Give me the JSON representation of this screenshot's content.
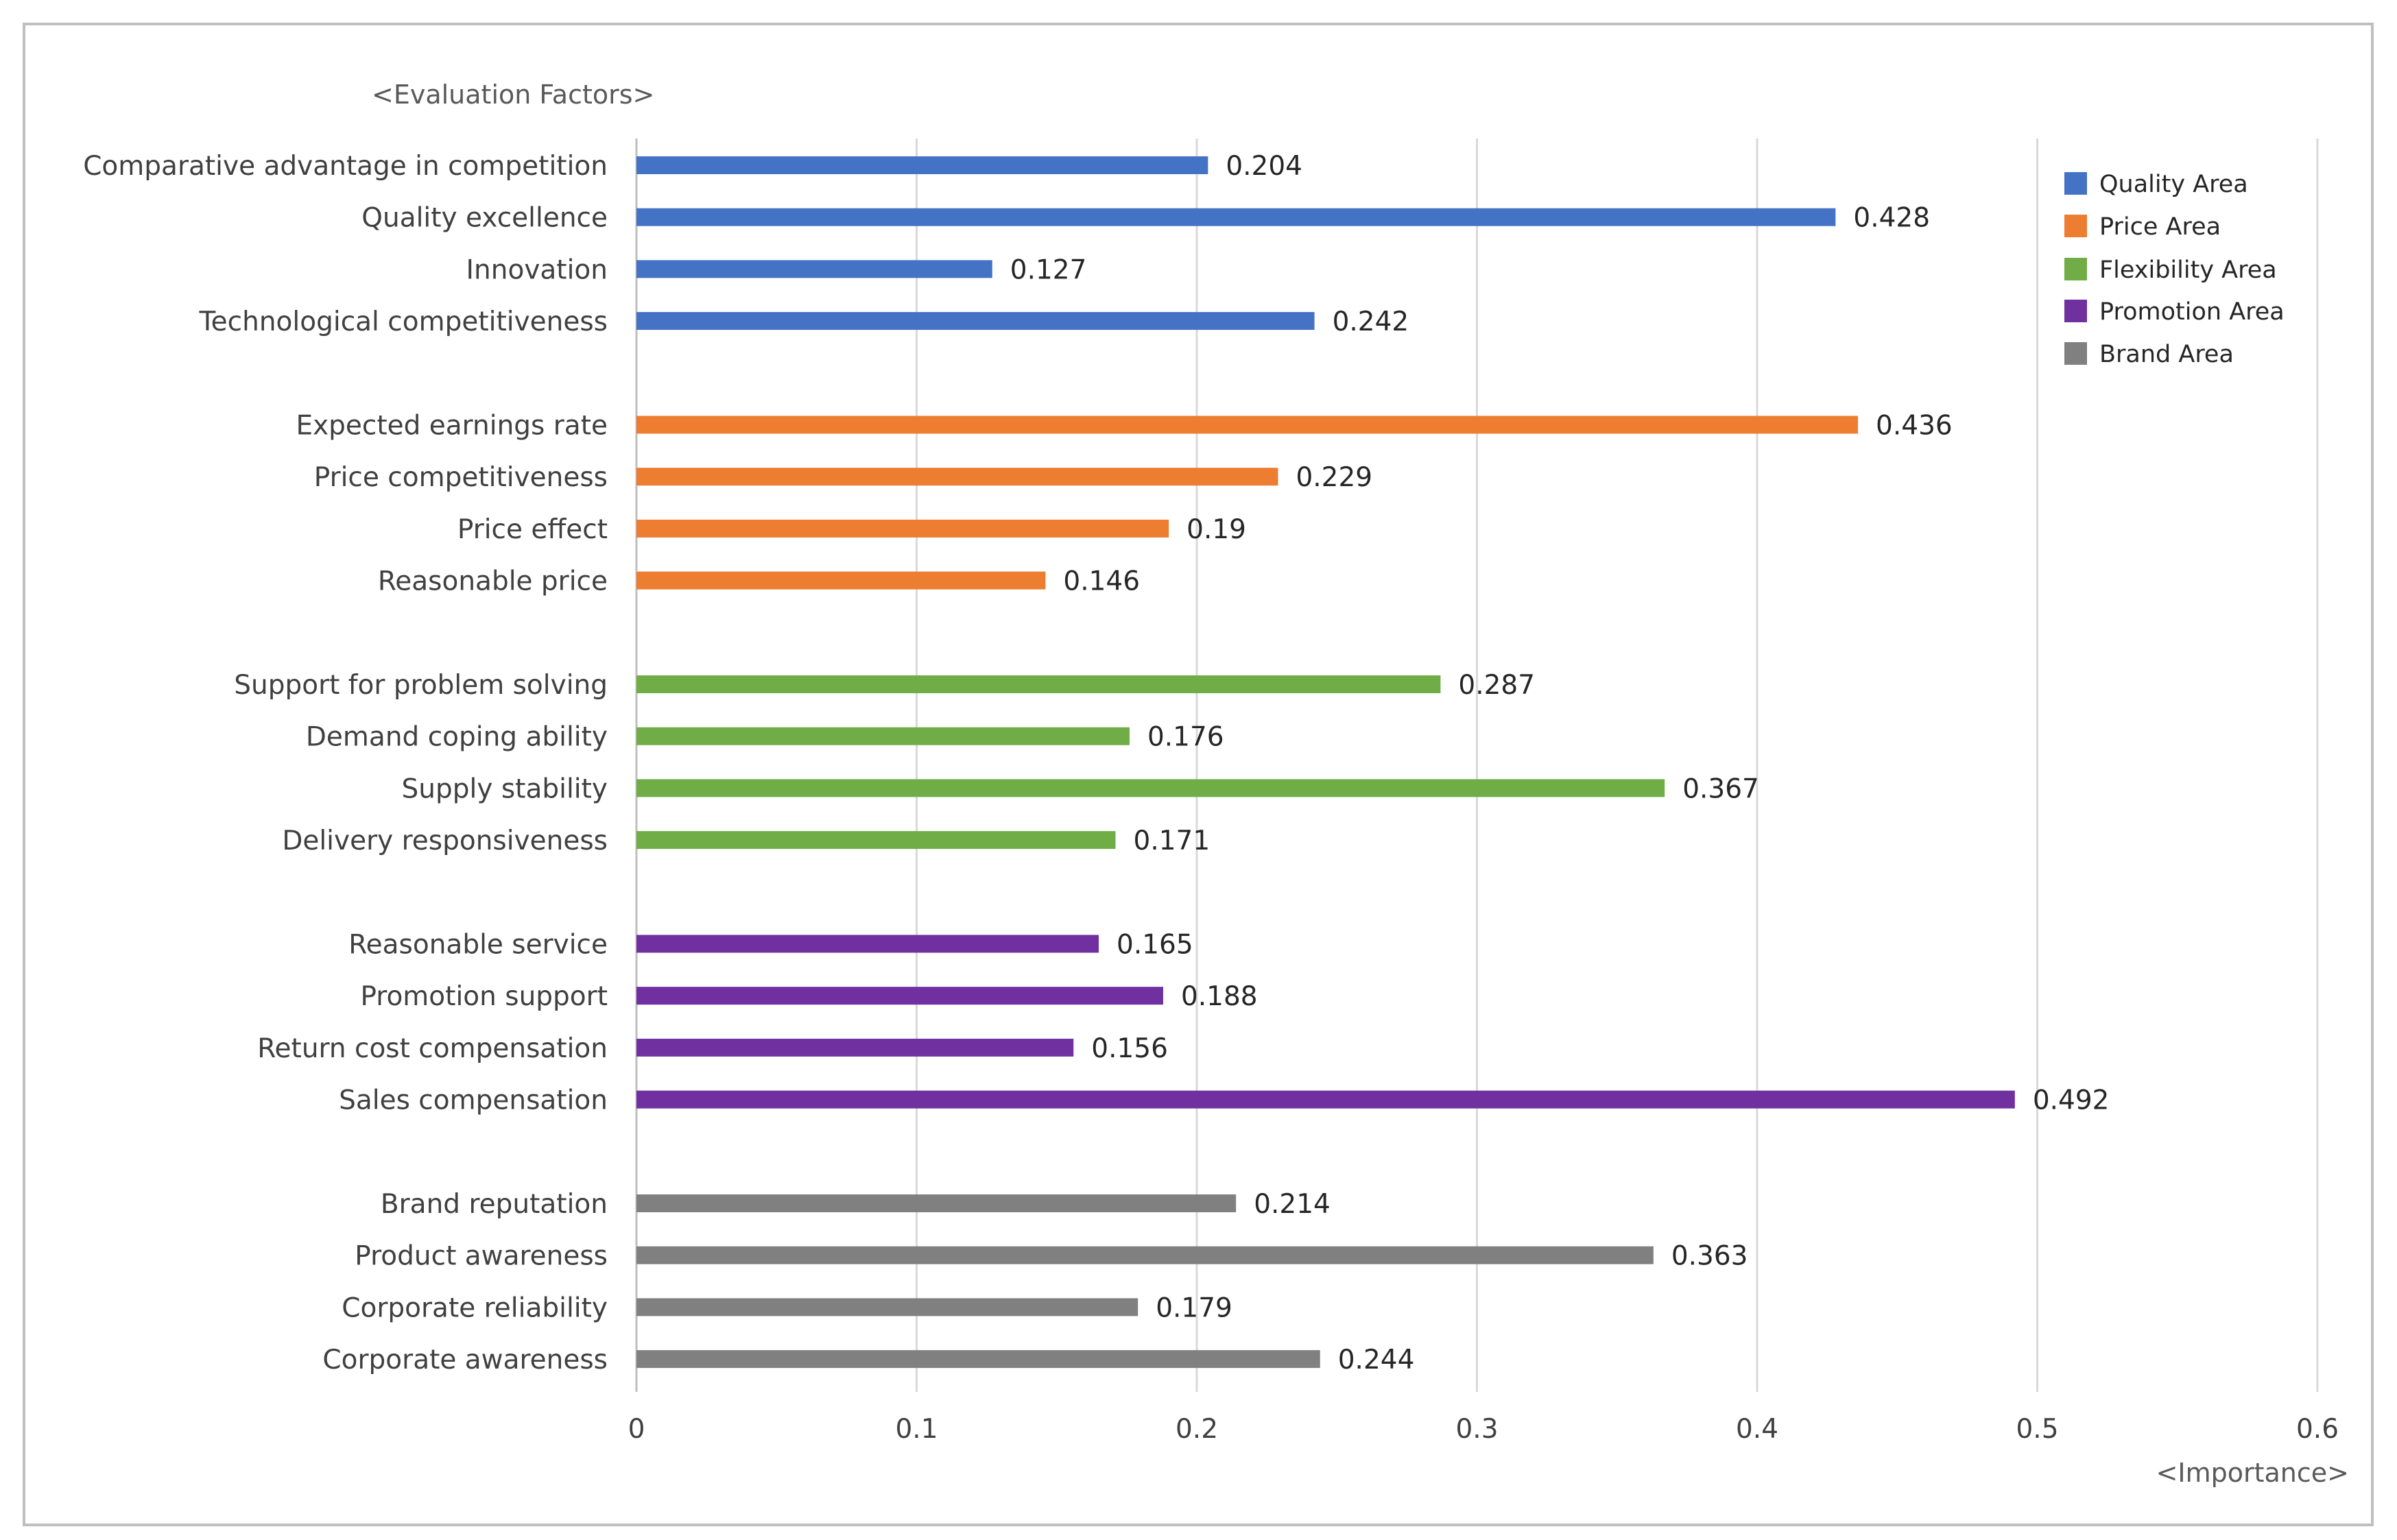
{
  "chart_data": {
    "type": "bar",
    "orientation": "horizontal",
    "ylabel": "<Evaluation Factors>",
    "xlabel": "<Importance>",
    "xlim": [
      0,
      0.6
    ],
    "xticks": [
      0,
      0.1,
      0.2,
      0.3,
      0.4,
      0.5,
      0.6
    ],
    "xtick_labels": [
      "0",
      "0.1",
      "0.2",
      "0.3",
      "0.4",
      "0.5",
      "0.6"
    ],
    "grid": "vertical",
    "legend_position": "top-right",
    "series": [
      {
        "name": "Quality Area",
        "color": "#4472c4",
        "categories": [
          "Comparative advantage in competition",
          "Quality excellence",
          "Innovation",
          "Technological competitiveness"
        ],
        "values": [
          0.204,
          0.428,
          0.127,
          0.242
        ],
        "value_labels": [
          "0.204",
          "0.428",
          "0.127",
          "0.242"
        ]
      },
      {
        "name": "Price Area",
        "color": "#ed7d31",
        "categories": [
          "Expected earnings rate",
          "Price competitiveness",
          "Price effect",
          "Reasonable price"
        ],
        "values": [
          0.436,
          0.229,
          0.19,
          0.146
        ],
        "value_labels": [
          "0.436",
          "0.229",
          "0.19",
          "0.146"
        ]
      },
      {
        "name": "Flexibility Area",
        "color": "#70ad47",
        "categories": [
          "Support for problem solving",
          "Demand coping ability",
          "Supply stability",
          "Delivery responsiveness"
        ],
        "values": [
          0.287,
          0.176,
          0.367,
          0.171
        ],
        "value_labels": [
          "0.287",
          "0.176",
          "0.367",
          "0.171"
        ]
      },
      {
        "name": "Promotion Area",
        "color": "#7030a0",
        "categories": [
          "Reasonable service",
          "Promotion support",
          "Return cost compensation",
          "Sales compensation"
        ],
        "values": [
          0.165,
          0.188,
          0.156,
          0.492
        ],
        "value_labels": [
          "0.165",
          "0.188",
          "0.156",
          "0.492"
        ]
      },
      {
        "name": "Brand Area",
        "color": "#808080",
        "categories": [
          "Brand reputation",
          "Product awareness",
          "Corporate reliability",
          "Corporate awareness"
        ],
        "values": [
          0.214,
          0.363,
          0.179,
          0.244
        ],
        "value_labels": [
          "0.214",
          "0.363",
          "0.179",
          "0.244"
        ]
      }
    ]
  }
}
